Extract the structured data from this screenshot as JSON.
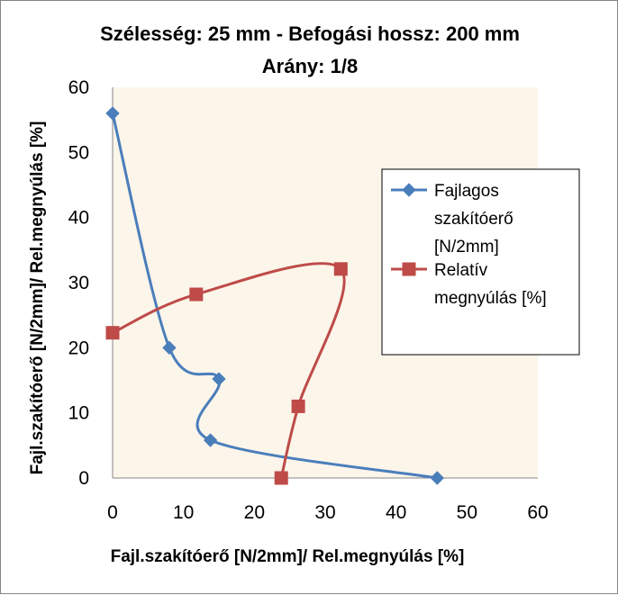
{
  "chart_data": {
    "type": "scatter",
    "title_lines": [
      "Szélesség: 25 mm - Befogási hossz: 200 mm",
      "Arány: 1/8"
    ],
    "xlabel": "Fajl.szakítóerő [N/2mm]/ Rel.megnyúlás [%]",
    "ylabel": "Fajl.szakítóerő [N/2mm]/ Rel.megnyúlás [%]",
    "xlim": [
      0,
      60
    ],
    "ylim": [
      0,
      60
    ],
    "xticks": [
      0,
      10,
      20,
      30,
      40,
      50,
      60
    ],
    "yticks": [
      0,
      10,
      20,
      30,
      40,
      50,
      60
    ],
    "grid": false,
    "legend_position": "right",
    "smooth_lines": true,
    "series": [
      {
        "name_lines": [
          "Fajlagos",
          "szakítóerő",
          "[N/2mm]"
        ],
        "color": "#4a7ebb",
        "marker": "diamond",
        "points": [
          {
            "x": 0,
            "y": 56
          },
          {
            "x": 8,
            "y": 20
          },
          {
            "x": 15,
            "y": 15.2
          },
          {
            "x": 13.8,
            "y": 5.8
          },
          {
            "x": 45.8,
            "y": 0
          }
        ]
      },
      {
        "name_lines": [
          "Relatív",
          "megnyúlás [%]"
        ],
        "color": "#be4b48",
        "marker": "square",
        "points": [
          {
            "x": 0,
            "y": 22.3
          },
          {
            "x": 11.8,
            "y": 28.2
          },
          {
            "x": 32.2,
            "y": 32.1
          },
          {
            "x": 26.2,
            "y": 11
          },
          {
            "x": 23.8,
            "y": 0
          }
        ]
      }
    ]
  }
}
